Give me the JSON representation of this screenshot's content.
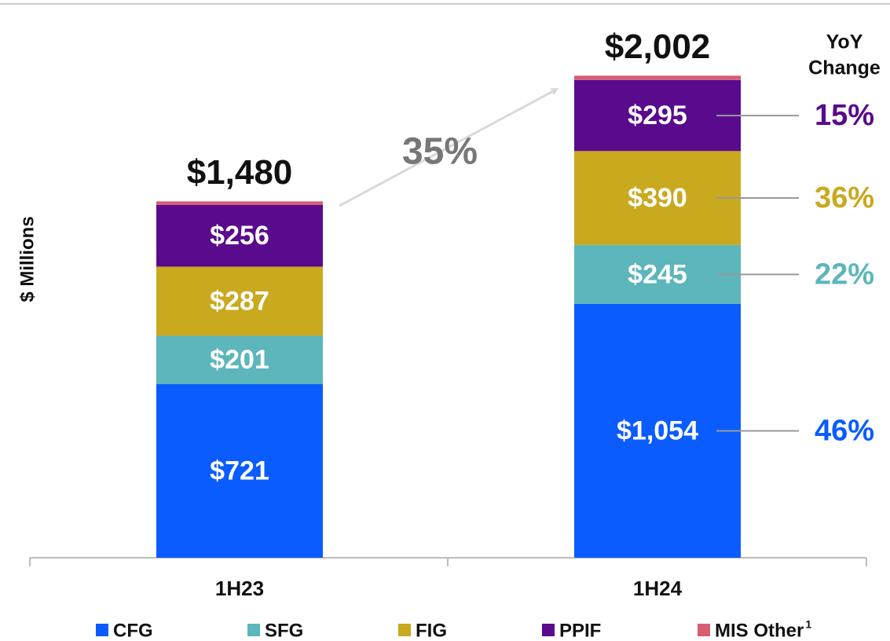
{
  "chart_data": {
    "type": "stacked_bar",
    "ylabel": "$ Millions",
    "categories": [
      "1H23",
      "1H24"
    ],
    "ylim": [
      0,
      2300
    ],
    "series": [
      {
        "name": "CFG",
        "color": "#0a5cff",
        "values": [
          721,
          1054
        ],
        "value_labels": [
          "$721",
          "$1,054"
        ],
        "yoy": {
          "value": 46,
          "label": "46%"
        }
      },
      {
        "name": "SFG",
        "color": "#5cb6bb",
        "values": [
          201,
          245
        ],
        "value_labels": [
          "$201",
          "$245"
        ],
        "yoy": {
          "value": 22,
          "label": "22%"
        }
      },
      {
        "name": "FIG",
        "color": "#c9a91e",
        "values": [
          287,
          390
        ],
        "value_labels": [
          "$287",
          "$390"
        ],
        "yoy": {
          "value": 36,
          "label": "36%"
        }
      },
      {
        "name": "PPIF",
        "color": "#5a0a8c",
        "values": [
          256,
          295
        ],
        "value_labels": [
          "$256",
          "$295"
        ],
        "yoy": {
          "value": 15,
          "label": "15%"
        }
      },
      {
        "name": "MIS Other",
        "note": "1",
        "color": "#d65f75",
        "values": [
          15,
          18
        ]
      }
    ],
    "totals": [
      {
        "value": 1480,
        "label": "$1,480"
      },
      {
        "value": 2002,
        "label": "$2,002"
      }
    ],
    "growth": {
      "value": 35,
      "label": "35%"
    },
    "yoy_title": [
      "YoY",
      "Change"
    ]
  }
}
